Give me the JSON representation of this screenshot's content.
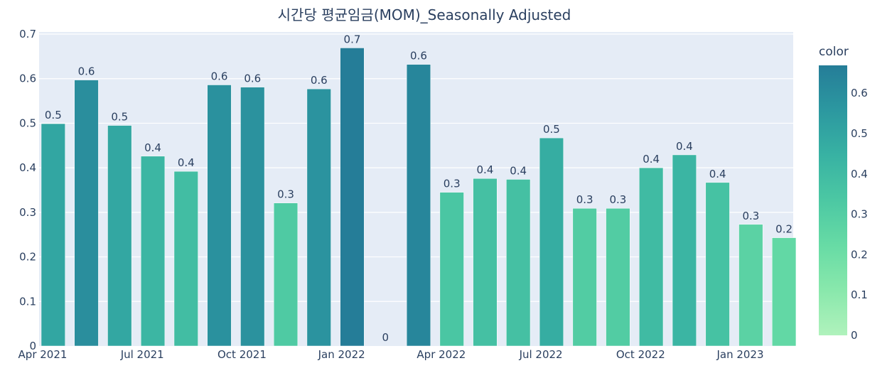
{
  "chart_data": {
    "type": "bar",
    "title": "시간당 평균임금(MOM)_Seasonally Adjusted",
    "xlabel": "",
    "ylabel": "",
    "categories": [
      "2021-04",
      "2021-05",
      "2021-06",
      "2021-07",
      "2021-08",
      "2021-09",
      "2021-10",
      "2021-11",
      "2021-12",
      "2022-01",
      "2022-02",
      "2022-03",
      "2022-04",
      "2022-05",
      "2022-06",
      "2022-07",
      "2022-08",
      "2022-09",
      "2022-10",
      "2022-11",
      "2022-12",
      "2023-01",
      "2023-02"
    ],
    "values": [
      0.499,
      0.597,
      0.495,
      0.426,
      0.392,
      0.586,
      0.581,
      0.321,
      0.577,
      0.669,
      0.0,
      0.632,
      0.345,
      0.376,
      0.374,
      0.467,
      0.309,
      0.309,
      0.4,
      0.429,
      0.367,
      0.273,
      0.243
    ],
    "data_labels": [
      "0.5",
      "0.6",
      "0.5",
      "0.4",
      "0.4",
      "0.6",
      "0.6",
      "0.3",
      "0.6",
      "0.7",
      "0",
      "0.6",
      "0.3",
      "0.4",
      "0.4",
      "0.5",
      "0.3",
      "0.3",
      "0.4",
      "0.4",
      "0.4",
      "0.3",
      "0.2"
    ],
    "x_tick_labels": [
      "Apr 2021",
      "Jul 2021",
      "Oct 2021",
      "Jan 2022",
      "Apr 2022",
      "Jul 2022",
      "Oct 2022",
      "Jan 2023"
    ],
    "x_tick_indices": [
      0,
      3,
      6,
      9,
      12,
      15,
      18,
      21
    ],
    "ylim": [
      0,
      0.7
    ],
    "y_ticks": [
      0,
      0.1,
      0.2,
      0.3,
      0.4,
      0.5,
      0.6,
      0.7
    ],
    "y_tick_labels": [
      "0",
      "0.1",
      "0.2",
      "0.3",
      "0.4",
      "0.5",
      "0.6",
      "0.7"
    ],
    "grid": true,
    "colorbar": {
      "title": "color",
      "range": [
        0,
        0.669
      ],
      "ticks": [
        0,
        0.1,
        0.2,
        0.3,
        0.4,
        0.5,
        0.6
      ],
      "tick_labels": [
        "0",
        "0.1",
        "0.2",
        "0.3",
        "0.4",
        "0.5",
        "0.6"
      ],
      "colorscale": [
        "#b0f2bc",
        "#89e8ac",
        "#67dba5",
        "#4cc8a3",
        "#38b2a3",
        "#2c98a0",
        "#257d98"
      ]
    },
    "colors": {
      "plot_background": "#e5ecf6",
      "gridline": "#ffffff",
      "text": "#2a3f5f"
    }
  }
}
